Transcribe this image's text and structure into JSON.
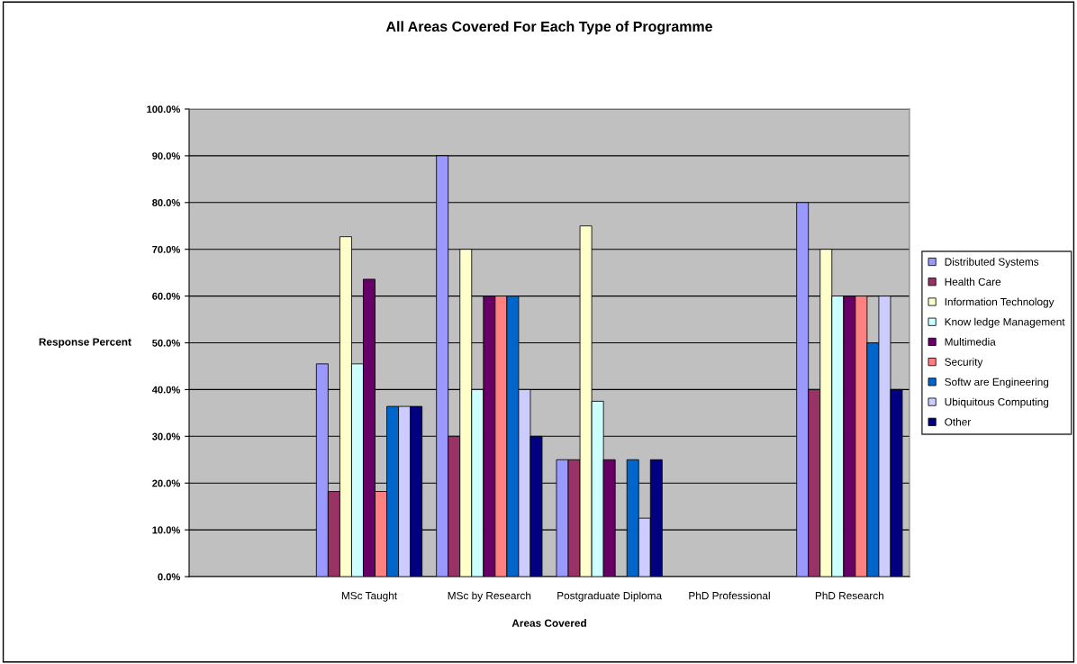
{
  "chart_data": {
    "type": "bar",
    "title": "All Areas Covered For Each Type of Programme",
    "xlabel": "Areas Covered",
    "ylabel": "Response Percent",
    "categories": [
      null,
      "MSc Taught",
      "MSc by Research",
      "Postgraduate Diploma",
      "PhD Professional",
      "PhD Research"
    ],
    "series": [
      {
        "name": "Distributed Systems",
        "color": "#9999ff",
        "values": [
          null,
          45.5,
          90,
          25,
          null,
          80
        ]
      },
      {
        "name": "Health Care",
        "color": "#993366",
        "values": [
          null,
          18.2,
          30,
          25,
          null,
          40
        ]
      },
      {
        "name": "Information Technology",
        "color": "#ffffcc",
        "values": [
          null,
          72.7,
          70,
          75,
          null,
          70
        ]
      },
      {
        "name": "Know ledge Management",
        "color": "#ccffff",
        "values": [
          null,
          45.5,
          40,
          37.5,
          null,
          60
        ]
      },
      {
        "name": "Multimedia",
        "color": "#660066",
        "values": [
          null,
          63.6,
          60,
          25,
          null,
          60
        ]
      },
      {
        "name": "Security",
        "color": "#ff8080",
        "values": [
          null,
          18.2,
          60,
          null,
          null,
          60
        ]
      },
      {
        "name": "Softw are Engineering",
        "color": "#0066cc",
        "values": [
          null,
          36.4,
          60,
          25,
          null,
          50
        ]
      },
      {
        "name": "Ubiquitous Computing",
        "color": "#ccccff",
        "values": [
          null,
          36.4,
          40,
          12.5,
          null,
          60
        ]
      },
      {
        "name": "Other",
        "color": "#000080",
        "values": [
          null,
          36.4,
          30,
          25,
          null,
          40
        ]
      }
    ],
    "ylim": [
      0,
      100
    ],
    "yticks": [
      {
        "value": 0,
        "label": "0.0%"
      },
      {
        "value": 10,
        "label": "10.0%"
      },
      {
        "value": 20,
        "label": "20.0%"
      },
      {
        "value": 30,
        "label": "30.0%"
      },
      {
        "value": 40,
        "label": "40.0%"
      },
      {
        "value": 50,
        "label": "50.0%"
      },
      {
        "value": 60,
        "label": "60.0%"
      },
      {
        "value": 70,
        "label": "70.0%"
      },
      {
        "value": 80,
        "label": "80.0%"
      },
      {
        "value": 90,
        "label": "90.0%"
      },
      {
        "value": 100,
        "label": "100.0%"
      }
    ],
    "grid": "y",
    "legend": "right"
  }
}
